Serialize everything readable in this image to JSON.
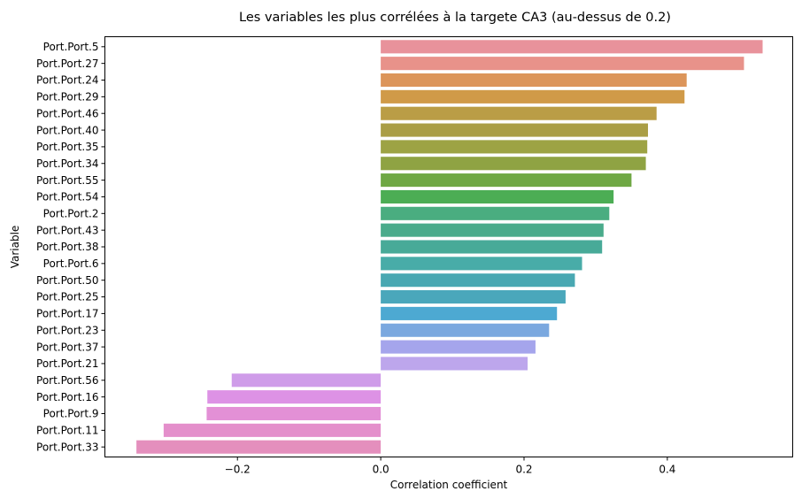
{
  "chart_data": {
    "type": "bar",
    "orientation": "horizontal",
    "title": "Les variables les plus corrélées à la targete CA3 (au-dessus de 0.2)",
    "xlabel": "Correlation coefficient",
    "ylabel": "Variable",
    "xlim": [
      -0.385,
      0.575
    ],
    "xticks": [
      {
        "value": -0.2,
        "label": "−0.2"
      },
      {
        "value": 0.0,
        "label": "0.0"
      },
      {
        "value": 0.2,
        "label": "0.2"
      },
      {
        "value": 0.4,
        "label": "0.4"
      }
    ],
    "grid": false,
    "categories": [
      "Port.Port.5",
      "Port.Port.27",
      "Port.Port.24",
      "Port.Port.29",
      "Port.Port.46",
      "Port.Port.40",
      "Port.Port.35",
      "Port.Port.34",
      "Port.Port.55",
      "Port.Port.54",
      "Port.Port.2",
      "Port.Port.43",
      "Port.Port.38",
      "Port.Port.6",
      "Port.Port.50",
      "Port.Port.25",
      "Port.Port.17",
      "Port.Port.23",
      "Port.Port.37",
      "Port.Port.21",
      "Port.Port.56",
      "Port.Port.16",
      "Port.Port.9",
      "Port.Port.11",
      "Port.Port.33"
    ],
    "values": [
      0.533,
      0.507,
      0.427,
      0.424,
      0.385,
      0.373,
      0.372,
      0.37,
      0.35,
      0.325,
      0.319,
      0.311,
      0.309,
      0.281,
      0.271,
      0.258,
      0.246,
      0.235,
      0.216,
      0.205,
      -0.208,
      -0.242,
      -0.243,
      -0.303,
      -0.341
    ],
    "colors": [
      "#e8929b",
      "#e8928a",
      "#dc955a",
      "#d09a48",
      "#ba9d46",
      "#aa9e45",
      "#9da344",
      "#8fa343",
      "#6fa844",
      "#4cad54",
      "#4aad80",
      "#4aab8b",
      "#48aa98",
      "#48aca8",
      "#49a8b2",
      "#4aa7bb",
      "#4da9d2",
      "#7aa8df",
      "#a5a5ec",
      "#bda6ec",
      "#cf9ce9",
      "#dd92e5",
      "#e390d6",
      "#e48fcb",
      "#e48fbd"
    ]
  }
}
